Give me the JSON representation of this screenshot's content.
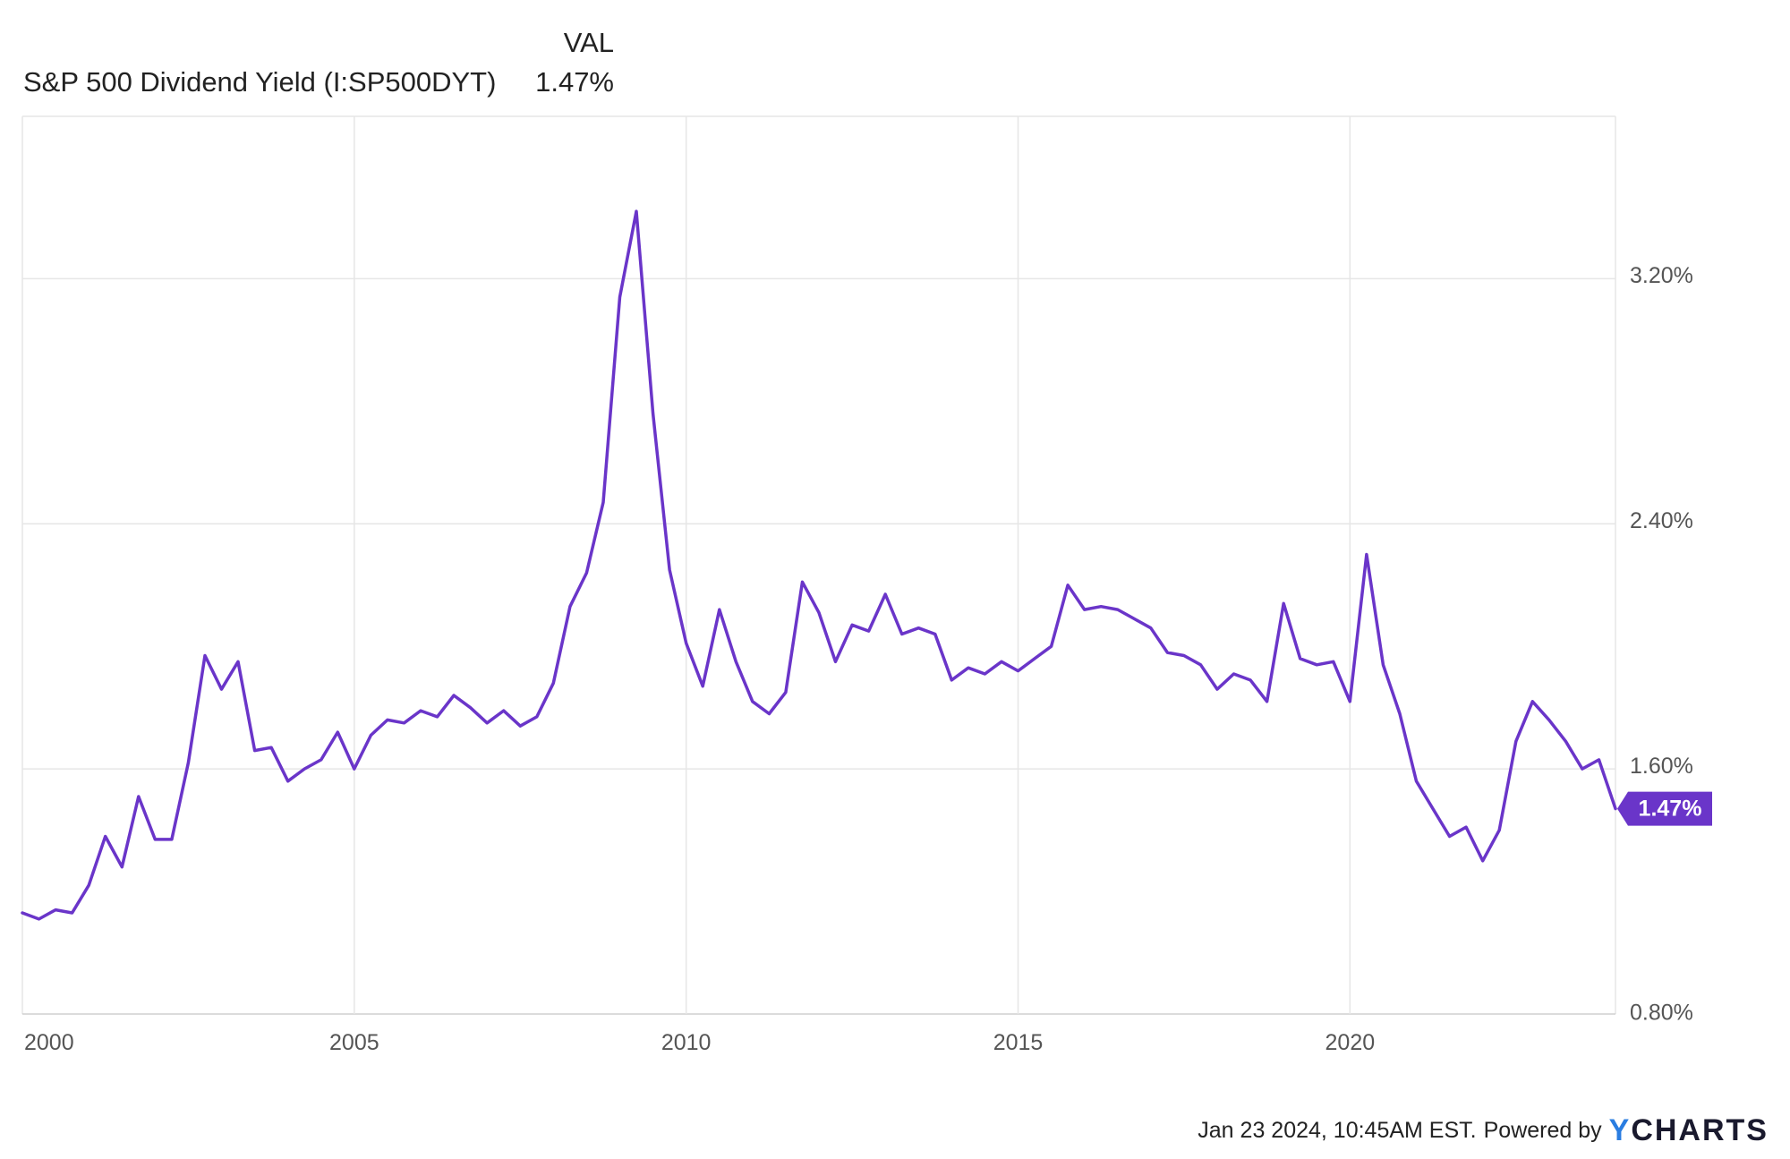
{
  "legend": {
    "header": "VAL",
    "series_name": "S&P 500 Dividend Yield (I:SP500DYT)",
    "series_value": "1.47%"
  },
  "footer": {
    "timestamp": "Jan 23 2024, 10:45AM EST.",
    "powered_by": "Powered by",
    "logo_y": "Y",
    "logo_rest": "CHARTS"
  },
  "colors": {
    "line": "#6a35c9",
    "grid": "#e6e6e6",
    "badge": "#6a35c9",
    "axis_text": "#555555"
  },
  "chart_data": {
    "type": "line",
    "title": "",
    "xlabel": "",
    "ylabel": "",
    "x_ticks": [
      "2000",
      "2005",
      "2010",
      "2015",
      "2020"
    ],
    "y_ticks": [
      "0.80%",
      "1.60%",
      "2.40%",
      "3.20%"
    ],
    "ylim": [
      0.8,
      3.73
    ],
    "xlim": [
      2000.0,
      2024.0
    ],
    "grid": true,
    "last_value_label": "1.47%",
    "series": [
      {
        "name": "S&P 500 Dividend Yield (I:SP500DYT)",
        "x": [
          2000.0,
          2000.25,
          2000.5,
          2000.75,
          2001.0,
          2001.25,
          2001.5,
          2001.75,
          2002.0,
          2002.25,
          2002.5,
          2002.75,
          2003.0,
          2003.25,
          2003.5,
          2003.75,
          2004.0,
          2004.25,
          2004.5,
          2004.75,
          2005.0,
          2005.25,
          2005.5,
          2005.75,
          2006.0,
          2006.25,
          2006.5,
          2006.75,
          2007.0,
          2007.25,
          2007.5,
          2007.75,
          2008.0,
          2008.25,
          2008.5,
          2008.75,
          2009.0,
          2009.25,
          2009.5,
          2009.75,
          2010.0,
          2010.25,
          2010.5,
          2010.75,
          2011.0,
          2011.25,
          2011.5,
          2011.75,
          2012.0,
          2012.25,
          2012.5,
          2012.75,
          2013.0,
          2013.25,
          2013.5,
          2013.75,
          2014.0,
          2014.25,
          2014.5,
          2014.75,
          2015.0,
          2015.25,
          2015.5,
          2015.75,
          2016.0,
          2016.25,
          2016.5,
          2016.75,
          2017.0,
          2017.25,
          2017.5,
          2017.75,
          2018.0,
          2018.25,
          2018.5,
          2018.75,
          2019.0,
          2019.25,
          2019.5,
          2019.75,
          2020.0,
          2020.25,
          2020.5,
          2020.75,
          2021.0,
          2021.25,
          2021.5,
          2021.75,
          2022.0,
          2022.25,
          2022.5,
          2022.75,
          2023.0,
          2023.25,
          2023.5,
          2023.75,
          2024.0
        ],
        "values": [
          1.13,
          1.11,
          1.14,
          1.13,
          1.22,
          1.38,
          1.28,
          1.51,
          1.37,
          1.37,
          1.62,
          1.97,
          1.86,
          1.95,
          1.66,
          1.67,
          1.56,
          1.6,
          1.63,
          1.72,
          1.6,
          1.71,
          1.76,
          1.75,
          1.79,
          1.77,
          1.84,
          1.8,
          1.75,
          1.79,
          1.74,
          1.77,
          1.88,
          2.13,
          2.24,
          2.47,
          3.14,
          3.42,
          2.76,
          2.25,
          2.01,
          1.87,
          2.12,
          1.95,
          1.82,
          1.78,
          1.85,
          2.21,
          2.11,
          1.95,
          2.07,
          2.05,
          2.17,
          2.04,
          2.06,
          2.04,
          1.89,
          1.93,
          1.91,
          1.95,
          1.92,
          1.96,
          2.0,
          2.2,
          2.12,
          2.13,
          2.12,
          2.09,
          2.06,
          1.98,
          1.97,
          1.94,
          1.86,
          1.91,
          1.89,
          1.82,
          2.14,
          1.96,
          1.94,
          1.95,
          1.82,
          2.3,
          1.94,
          1.78,
          1.56,
          1.47,
          1.38,
          1.41,
          1.3,
          1.4,
          1.69,
          1.82,
          1.76,
          1.69,
          1.6,
          1.63,
          1.47
        ]
      }
    ]
  }
}
